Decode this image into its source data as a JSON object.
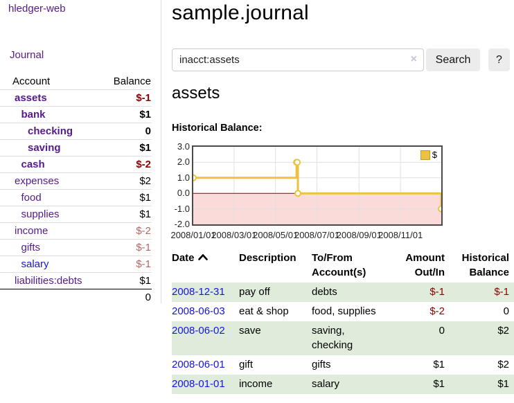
{
  "app": {
    "title": "hledger-web"
  },
  "sidebar": {
    "journal_label": "Journal",
    "accounts_header": {
      "account": "Account",
      "balance": "Balance"
    },
    "accounts": [
      {
        "name": "assets",
        "balance": "$-1",
        "depth": 0,
        "bold": true,
        "neg": "strong"
      },
      {
        "name": "bank",
        "balance": "$1",
        "depth": 1,
        "bold": true
      },
      {
        "name": "checking",
        "balance": "0",
        "depth": 2,
        "bold": true
      },
      {
        "name": "saving",
        "balance": "$1",
        "depth": 2,
        "bold": true
      },
      {
        "name": "cash",
        "balance": "$-2",
        "depth": 1,
        "bold": true,
        "neg": "strong"
      },
      {
        "name": "expenses",
        "balance": "$2",
        "depth": 0
      },
      {
        "name": "food",
        "balance": "$1",
        "depth": 1
      },
      {
        "name": "supplies",
        "balance": "$1",
        "depth": 1
      },
      {
        "name": "income",
        "balance": "$-2",
        "depth": 0,
        "neg": "soft"
      },
      {
        "name": "gifts",
        "balance": "$-1",
        "depth": 1,
        "neg": "soft"
      },
      {
        "name": "salary",
        "balance": "$-1",
        "depth": 1,
        "neg": "soft",
        "link": "blue"
      },
      {
        "name": "liabilities:debts",
        "balance": "$1",
        "depth": 0
      }
    ],
    "total": "0"
  },
  "main": {
    "title": "sample.journal",
    "account_heading": "assets",
    "chart_label": "Historical Balance:"
  },
  "search": {
    "value": "inacct:assets",
    "clear_icon": "×",
    "button_label": "Search",
    "help_label": "?"
  },
  "chart_data": {
    "type": "line",
    "style": "step",
    "title": "Historical Balance:",
    "series": [
      {
        "name": "$",
        "color": "#edc240",
        "points": [
          [
            "2008-01-01",
            1
          ],
          [
            "2008-06-01",
            2
          ],
          [
            "2008-06-02",
            2
          ],
          [
            "2008-06-03",
            0
          ],
          [
            "2008-12-31",
            -1
          ]
        ]
      }
    ],
    "x_range": [
      "2008-01-01",
      "2008-12-31"
    ],
    "x_ticks": [
      "2008/01/01",
      "2008/03/01",
      "2008/05/01",
      "2008/07/01",
      "2008/09/01",
      "2008/11/01"
    ],
    "y_ticks": [
      3.0,
      2.0,
      1.0,
      0.0,
      -1.0,
      -2.0
    ],
    "ylim": [
      -2,
      3
    ],
    "grid": true,
    "negative_region_color": "#fbdada",
    "zero_line_color": "#8b0000",
    "grid_color": "#e0e0e0",
    "legend": {
      "label": "$",
      "position": "top-right"
    }
  },
  "register": {
    "headers": {
      "date": "Date",
      "description": "Description",
      "account": "To/From Account(s)",
      "amount": "Amount Out/In",
      "balance": "Historical Balance"
    },
    "sort": "ascending",
    "rows": [
      {
        "date": "2008-12-31",
        "description": "pay off",
        "accounts": "debts",
        "amount": "$-1",
        "balance": "$-1",
        "amount_neg": true,
        "balance_neg": true,
        "shaded": true
      },
      {
        "date": "2008-06-03",
        "description": "eat & shop",
        "accounts": "food, supplies",
        "amount": "$-2",
        "balance": "0",
        "amount_neg": true,
        "shaded": false
      },
      {
        "date": "2008-06-02",
        "description": "save",
        "accounts": "saving, checking",
        "amount": "0",
        "balance": "$2",
        "shaded": true
      },
      {
        "date": "2008-06-01",
        "description": "gift",
        "accounts": "gifts",
        "amount": "$1",
        "balance": "$2",
        "shaded": false
      },
      {
        "date": "2008-01-01",
        "description": "income",
        "accounts": "salary",
        "amount": "$1",
        "balance": "$1",
        "shaded": true
      }
    ]
  }
}
